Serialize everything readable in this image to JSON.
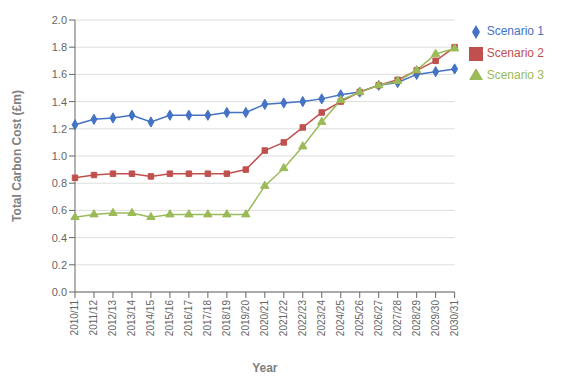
{
  "chart_data": {
    "type": "line",
    "xlabel": "Year",
    "ylabel": "Total Carbon Cost (£m)",
    "categories": [
      "2010/11",
      "2011/12",
      "2012/13",
      "2013/14",
      "2014/15",
      "2015/16",
      "2016/17",
      "2017/18",
      "2018/19",
      "2019/20",
      "2020/21",
      "2021/22",
      "2022/23",
      "2023/24",
      "2024/25",
      "2025/26",
      "2026/27",
      "2027/28",
      "2028/29",
      "2029/30",
      "2030/31"
    ],
    "series": [
      {
        "name": "Scenario 1",
        "color": "#4472C4",
        "marker": "diamond",
        "values": [
          1.23,
          1.27,
          1.28,
          1.3,
          1.25,
          1.3,
          1.3,
          1.3,
          1.32,
          1.32,
          1.38,
          1.39,
          1.4,
          1.42,
          1.45,
          1.47,
          1.52,
          1.54,
          1.6,
          1.62,
          1.64
        ]
      },
      {
        "name": "Scenario 2",
        "color": "#C0504D",
        "marker": "square",
        "values": [
          0.84,
          0.86,
          0.87,
          0.87,
          0.85,
          0.87,
          0.87,
          0.87,
          0.87,
          0.9,
          1.04,
          1.1,
          1.21,
          1.32,
          1.4,
          1.47,
          1.52,
          1.56,
          1.63,
          1.7,
          1.8
        ]
      },
      {
        "name": "Scenario 3",
        "color": "#9BBB59",
        "marker": "triangle",
        "values": [
          0.55,
          0.57,
          0.58,
          0.58,
          0.55,
          0.57,
          0.57,
          0.57,
          0.57,
          0.57,
          0.78,
          0.91,
          1.07,
          1.25,
          1.41,
          1.47,
          1.52,
          1.55,
          1.63,
          1.75,
          1.79
        ]
      }
    ],
    "ylim": [
      0,
      2
    ],
    "yticks": [
      {
        "value": 0,
        "label": "0.0"
      },
      0.2,
      0.4,
      0.6,
      0.8,
      {
        "value": 1,
        "label": "1.0"
      },
      1.2,
      1.4,
      1.6,
      1.8,
      {
        "value": 2,
        "label": "2.0"
      }
    ],
    "grid": true,
    "legend": "right"
  }
}
